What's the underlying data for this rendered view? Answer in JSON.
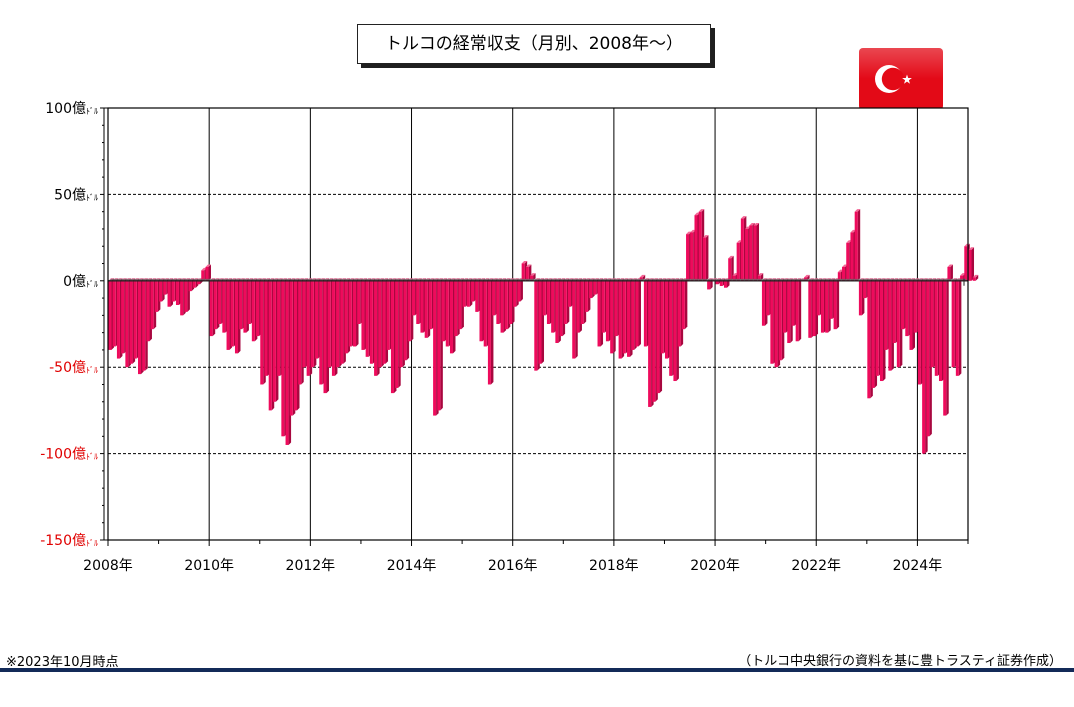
{
  "page": {
    "title": "トルコの経常収支（月別、2008年～）",
    "footnote": "※2023年10月時点",
    "source": "（トルコ中央銀行の資料を基に豊トラスティ証券作成）",
    "flag_icon": "turkey-flag-icon"
  },
  "colors": {
    "bar_fill": "#ee0b5c",
    "bar_side": "#a8073f",
    "bar_top": "#f46796",
    "negative_label": "#e00000",
    "positive_label": "#000000",
    "footer_rule": "#132a58",
    "flag_red": "#e30a17"
  },
  "chart_data": {
    "type": "bar",
    "title": "トルコの経常収支（月別、2008年～）",
    "ylim": [
      -150,
      100
    ],
    "yticks": [
      {
        "value": 100,
        "label": "100億ﾄﾞﾙ"
      },
      {
        "value": 50,
        "label": "50億ﾄﾞﾙ"
      },
      {
        "value": 0,
        "label": "0億ﾄﾞﾙ"
      },
      {
        "value": -50,
        "label": "-50億ﾄﾞﾙ"
      },
      {
        "value": -100,
        "label": "-100億ﾄﾞﾙ"
      },
      {
        "value": -150,
        "label": "-150億ﾄﾞﾙ"
      }
    ],
    "xticks": [
      "2008年",
      "2010年",
      "2012年",
      "2014年",
      "2016年",
      "2018年",
      "2020年",
      "2022年",
      "2024年"
    ],
    "grid_dashed_at": [
      50,
      -50,
      -100
    ],
    "unit": "億ﾄﾞﾙ",
    "start": "2008-01",
    "series": [
      {
        "values": [
          -40,
          -38,
          -45,
          -42,
          -50,
          -48,
          -45,
          -54,
          -52,
          -35,
          -28,
          -18,
          -12,
          -8,
          -15,
          -12,
          -14,
          -20,
          -18,
          -6,
          -4,
          -2,
          6,
          8,
          -32,
          -28,
          -25,
          -30,
          -40,
          -38,
          -42,
          -28,
          -30,
          -25,
          -35,
          -32,
          -60,
          -55,
          -75,
          -70,
          -55,
          -90,
          -95,
          -78,
          -75,
          -60,
          -50,
          -55,
          -50,
          -45,
          -60,
          -65,
          -50,
          -55,
          -50,
          -48,
          -42,
          -38,
          -38,
          -25,
          -40,
          -44,
          -48,
          -55,
          -50,
          -48,
          -40,
          -65,
          -62,
          -50,
          -46,
          -35,
          -20,
          -25,
          -30,
          -33,
          -28,
          -78,
          -75,
          -35,
          -38,
          -42,
          -32,
          -28,
          -15,
          -15,
          -12,
          -18,
          -35,
          -38,
          -60,
          -20,
          -25,
          -30,
          -28,
          -25,
          -15,
          -12,
          10,
          8,
          3,
          -52,
          -48,
          -20,
          -25,
          -30,
          -36,
          -32,
          -25,
          -15,
          -45,
          -30,
          -25,
          -18,
          -10,
          -8,
          -38,
          -30,
          -35,
          -42,
          -32,
          -45,
          -42,
          -44,
          -40,
          -38,
          2,
          -38,
          -73,
          -70,
          -65,
          -42,
          -45,
          -55,
          -58,
          -38,
          -28,
          27,
          28,
          38,
          40,
          25,
          -5,
          0,
          -2,
          -3,
          -4,
          13,
          3,
          22,
          36,
          30,
          32,
          32,
          3,
          -26,
          -20,
          -48,
          -50,
          -46,
          -30,
          -36,
          -26,
          -35,
          0,
          2,
          -33,
          -32,
          -20,
          -30,
          -30,
          -22,
          -28,
          5,
          8,
          22,
          28,
          40,
          -20,
          -10,
          -68,
          -62,
          -55,
          -58,
          -40,
          -52,
          -36,
          -50,
          -28,
          -32,
          -40,
          -30,
          -60,
          -100,
          -90,
          -50,
          -55,
          -58,
          -78,
          8,
          -50,
          -55,
          3,
          20,
          18,
          2
        ]
      }
    ]
  }
}
